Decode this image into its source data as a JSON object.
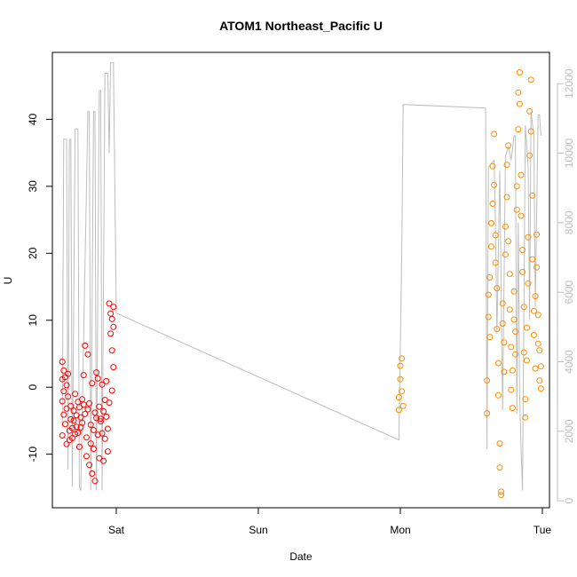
{
  "chart_data": {
    "type": "scatter",
    "title": "ATOM1 Northeast_Pacific U",
    "xlabel": "Date",
    "ylabel": "U",
    "x_ticks": [
      "Sat",
      "Sun",
      "Mon",
      "Tue"
    ],
    "xlim": [
      -0.45,
      3.05
    ],
    "ylim": [
      -18,
      50
    ],
    "y_ticks": [
      -10,
      0,
      10,
      20,
      30,
      40
    ],
    "y2lim": [
      -200,
      12900
    ],
    "y2_ticks": [
      0,
      2000,
      4000,
      6000,
      8000,
      10000,
      12000
    ],
    "grid": false,
    "colors": {
      "early": "#ff0000",
      "late": "#ff8c00",
      "secondary_line": "#bdbdbd",
      "secondary_axis": "#bdbdbd"
    },
    "series": [
      {
        "color": "#ff0000",
        "points": [
          [
            -0.38,
            3.8
          ],
          [
            -0.38,
            1.2
          ],
          [
            -0.38,
            -2.1
          ],
          [
            -0.38,
            -7.2
          ],
          [
            -0.37,
            2.5
          ],
          [
            -0.37,
            -0.6
          ],
          [
            -0.37,
            -4.1
          ],
          [
            -0.36,
            1.5
          ],
          [
            -0.36,
            -5.5
          ],
          [
            -0.35,
            0.3
          ],
          [
            -0.35,
            -3.2
          ],
          [
            -0.35,
            -8.5
          ],
          [
            -0.34,
            2.0
          ],
          [
            -0.34,
            -1.4
          ],
          [
            -0.33,
            -6.5
          ],
          [
            -0.33,
            -7.9
          ],
          [
            -0.32,
            -2.8
          ],
          [
            -0.32,
            -4.8
          ],
          [
            -0.31,
            -6.1
          ],
          [
            -0.31,
            -7.6
          ],
          [
            -0.3,
            -3.5
          ],
          [
            -0.3,
            -5.0
          ],
          [
            -0.29,
            -1.0
          ],
          [
            -0.29,
            -7.0
          ],
          [
            -0.28,
            -4.2
          ],
          [
            -0.28,
            -5.9
          ],
          [
            -0.27,
            -2.2
          ],
          [
            -0.27,
            -6.8
          ],
          [
            -0.26,
            -3.0
          ],
          [
            -0.26,
            -8.9
          ],
          [
            -0.25,
            -4.5
          ],
          [
            -0.25,
            -6.0
          ],
          [
            -0.24,
            -1.8
          ],
          [
            -0.24,
            -5.3
          ],
          [
            -0.23,
            -2.6
          ],
          [
            -0.23,
            1.8
          ],
          [
            -0.22,
            -4.0
          ],
          [
            -0.22,
            6.2
          ],
          [
            -0.21,
            -7.5
          ],
          [
            -0.21,
            -10.3
          ],
          [
            -0.2,
            -3.3
          ],
          [
            -0.2,
            4.9
          ],
          [
            -0.19,
            -2.4
          ],
          [
            -0.19,
            -11.6
          ],
          [
            -0.18,
            -5.6
          ],
          [
            -0.18,
            -8.4
          ],
          [
            -0.17,
            0.6
          ],
          [
            -0.17,
            -12.9
          ],
          [
            -0.16,
            -6.4
          ],
          [
            -0.16,
            -9.2
          ],
          [
            -0.15,
            -3.8
          ],
          [
            -0.15,
            -14.0
          ],
          [
            -0.14,
            2.2
          ],
          [
            -0.14,
            -4.6
          ],
          [
            -0.13,
            -7.1
          ],
          [
            -0.13,
            1.3
          ],
          [
            -0.12,
            -2.9
          ],
          [
            -0.12,
            -10.6
          ],
          [
            -0.11,
            -5.1
          ],
          [
            -0.11,
            -4.7
          ],
          [
            -0.1,
            0.4
          ],
          [
            -0.1,
            -6.9
          ],
          [
            -0.09,
            -3.6
          ],
          [
            -0.09,
            -11.0
          ],
          [
            -0.08,
            -7.7
          ],
          [
            -0.08,
            -1.9
          ],
          [
            -0.07,
            0.9
          ],
          [
            -0.07,
            -4.4
          ],
          [
            -0.06,
            -9.6
          ],
          [
            -0.06,
            -6.2
          ],
          [
            -0.05,
            -2.3
          ],
          [
            -0.05,
            12.5
          ],
          [
            -0.04,
            11.0
          ],
          [
            -0.04,
            8.0
          ],
          [
            -0.03,
            10.2
          ],
          [
            -0.03,
            5.5
          ],
          [
            -0.03,
            -0.5
          ],
          [
            -0.02,
            12.0
          ],
          [
            -0.02,
            9.0
          ],
          [
            -0.02,
            3.0
          ]
        ]
      },
      {
        "color": "#ff8c00",
        "points": [
          [
            1.99,
            -3.4
          ],
          [
            1.99,
            -1.5
          ],
          [
            2.0,
            1.2
          ],
          [
            2.0,
            3.2
          ],
          [
            2.01,
            4.3
          ],
          [
            2.01,
            -0.6
          ],
          [
            2.02,
            -2.8
          ],
          [
            2.61,
            -3.9
          ],
          [
            2.61,
            1.0
          ],
          [
            2.62,
            10.5
          ],
          [
            2.62,
            13.8
          ],
          [
            2.63,
            7.5
          ],
          [
            2.63,
            16.4
          ],
          [
            2.64,
            21.0
          ],
          [
            2.64,
            24.5
          ],
          [
            2.65,
            27.4
          ],
          [
            2.65,
            33.0
          ],
          [
            2.66,
            37.8
          ],
          [
            2.66,
            30.2
          ],
          [
            2.67,
            22.7
          ],
          [
            2.67,
            18.6
          ],
          [
            2.68,
            14.8
          ],
          [
            2.68,
            8.7
          ],
          [
            2.69,
            3.6
          ],
          [
            2.69,
            -1.2
          ],
          [
            2.7,
            -8.4
          ],
          [
            2.7,
            -12.0
          ],
          [
            2.71,
            -15.6
          ],
          [
            2.71,
            -16.1
          ],
          [
            2.72,
            9.5
          ],
          [
            2.72,
            12.5
          ],
          [
            2.73,
            6.7
          ],
          [
            2.73,
            2.3
          ],
          [
            2.74,
            19.8
          ],
          [
            2.74,
            24.0
          ],
          [
            2.75,
            28.4
          ],
          [
            2.75,
            33.2
          ],
          [
            2.76,
            36.1
          ],
          [
            2.76,
            21.8
          ],
          [
            2.77,
            16.9
          ],
          [
            2.77,
            11.6
          ],
          [
            2.78,
            6.0
          ],
          [
            2.78,
            -0.4
          ],
          [
            2.79,
            -3.1
          ],
          [
            2.79,
            2.5
          ],
          [
            2.8,
            10.1
          ],
          [
            2.8,
            14.3
          ],
          [
            2.81,
            8.3
          ],
          [
            2.81,
            4.9
          ],
          [
            2.82,
            30.0
          ],
          [
            2.82,
            26.5
          ],
          [
            2.83,
            38.5
          ],
          [
            2.83,
            44.0
          ],
          [
            2.84,
            47.0
          ],
          [
            2.84,
            42.3
          ],
          [
            2.85,
            31.7
          ],
          [
            2.85,
            25.6
          ],
          [
            2.86,
            20.5
          ],
          [
            2.86,
            17.2
          ],
          [
            2.87,
            12.0
          ],
          [
            2.87,
            5.2
          ],
          [
            2.88,
            -1.8
          ],
          [
            2.88,
            -4.5
          ],
          [
            2.89,
            4.0
          ],
          [
            2.89,
            8.9
          ],
          [
            2.9,
            15.5
          ],
          [
            2.9,
            22.4
          ],
          [
            2.91,
            34.6
          ],
          [
            2.91,
            41.2
          ],
          [
            2.92,
            45.9
          ],
          [
            2.92,
            38.2
          ],
          [
            2.93,
            28.6
          ],
          [
            2.93,
            19.1
          ],
          [
            2.94,
            11.4
          ],
          [
            2.94,
            7.8
          ],
          [
            2.95,
            2.8
          ],
          [
            2.95,
            13.6
          ],
          [
            2.96,
            22.8
          ],
          [
            2.96,
            17.9
          ],
          [
            2.97,
            10.8
          ],
          [
            2.97,
            6.5
          ],
          [
            2.98,
            1.0
          ],
          [
            2.98,
            5.5
          ],
          [
            2.99,
            3.1
          ],
          [
            2.99,
            -0.2
          ]
        ]
      }
    ],
    "secondary_line": {
      "color": "#bdbdbd",
      "points": [
        [
          -0.38,
          2100
        ],
        [
          -0.37,
          10400
        ],
        [
          -0.35,
          10400
        ],
        [
          -0.34,
          900
        ],
        [
          -0.33,
          10400
        ],
        [
          -0.32,
          10400
        ],
        [
          -0.31,
          400
        ],
        [
          -0.29,
          10700
        ],
        [
          -0.27,
          10700
        ],
        [
          -0.26,
          400
        ],
        [
          -0.25,
          300
        ],
        [
          -0.2,
          11200
        ],
        [
          -0.19,
          11200
        ],
        [
          -0.18,
          300
        ],
        [
          -0.16,
          11200
        ],
        [
          -0.15,
          11200
        ],
        [
          -0.14,
          300
        ],
        [
          -0.12,
          11800
        ],
        [
          -0.11,
          11800
        ],
        [
          -0.1,
          300
        ],
        [
          -0.08,
          12300
        ],
        [
          -0.07,
          12300
        ],
        [
          -0.06,
          12300
        ],
        [
          -0.05,
          10000
        ],
        [
          -0.04,
          12600
        ],
        [
          -0.02,
          12600
        ],
        [
          0.0,
          5400
        ],
        [
          1.99,
          1750
        ],
        [
          2.01,
          7200
        ],
        [
          2.02,
          11400
        ],
        [
          2.6,
          11300
        ],
        [
          2.61,
          1500
        ],
        [
          2.62,
          9600
        ],
        [
          2.66,
          9800
        ],
        [
          2.67,
          7900
        ],
        [
          2.68,
          4800
        ],
        [
          2.7,
          9500
        ],
        [
          2.72,
          2600
        ],
        [
          2.74,
          9900
        ],
        [
          2.76,
          10200
        ],
        [
          2.78,
          9800
        ],
        [
          2.8,
          10500
        ],
        [
          2.81,
          10500
        ],
        [
          2.82,
          2500
        ],
        [
          2.83,
          8000
        ],
        [
          2.84,
          3000
        ],
        [
          2.85,
          1500
        ],
        [
          2.86,
          300
        ],
        [
          2.87,
          5500
        ],
        [
          2.88,
          10800
        ],
        [
          2.9,
          9600
        ],
        [
          2.91,
          5200
        ],
        [
          2.92,
          11200
        ],
        [
          2.94,
          10500
        ],
        [
          2.95,
          5600
        ],
        [
          2.97,
          11100
        ],
        [
          2.98,
          11100
        ],
        [
          2.99,
          10500
        ]
      ]
    }
  }
}
